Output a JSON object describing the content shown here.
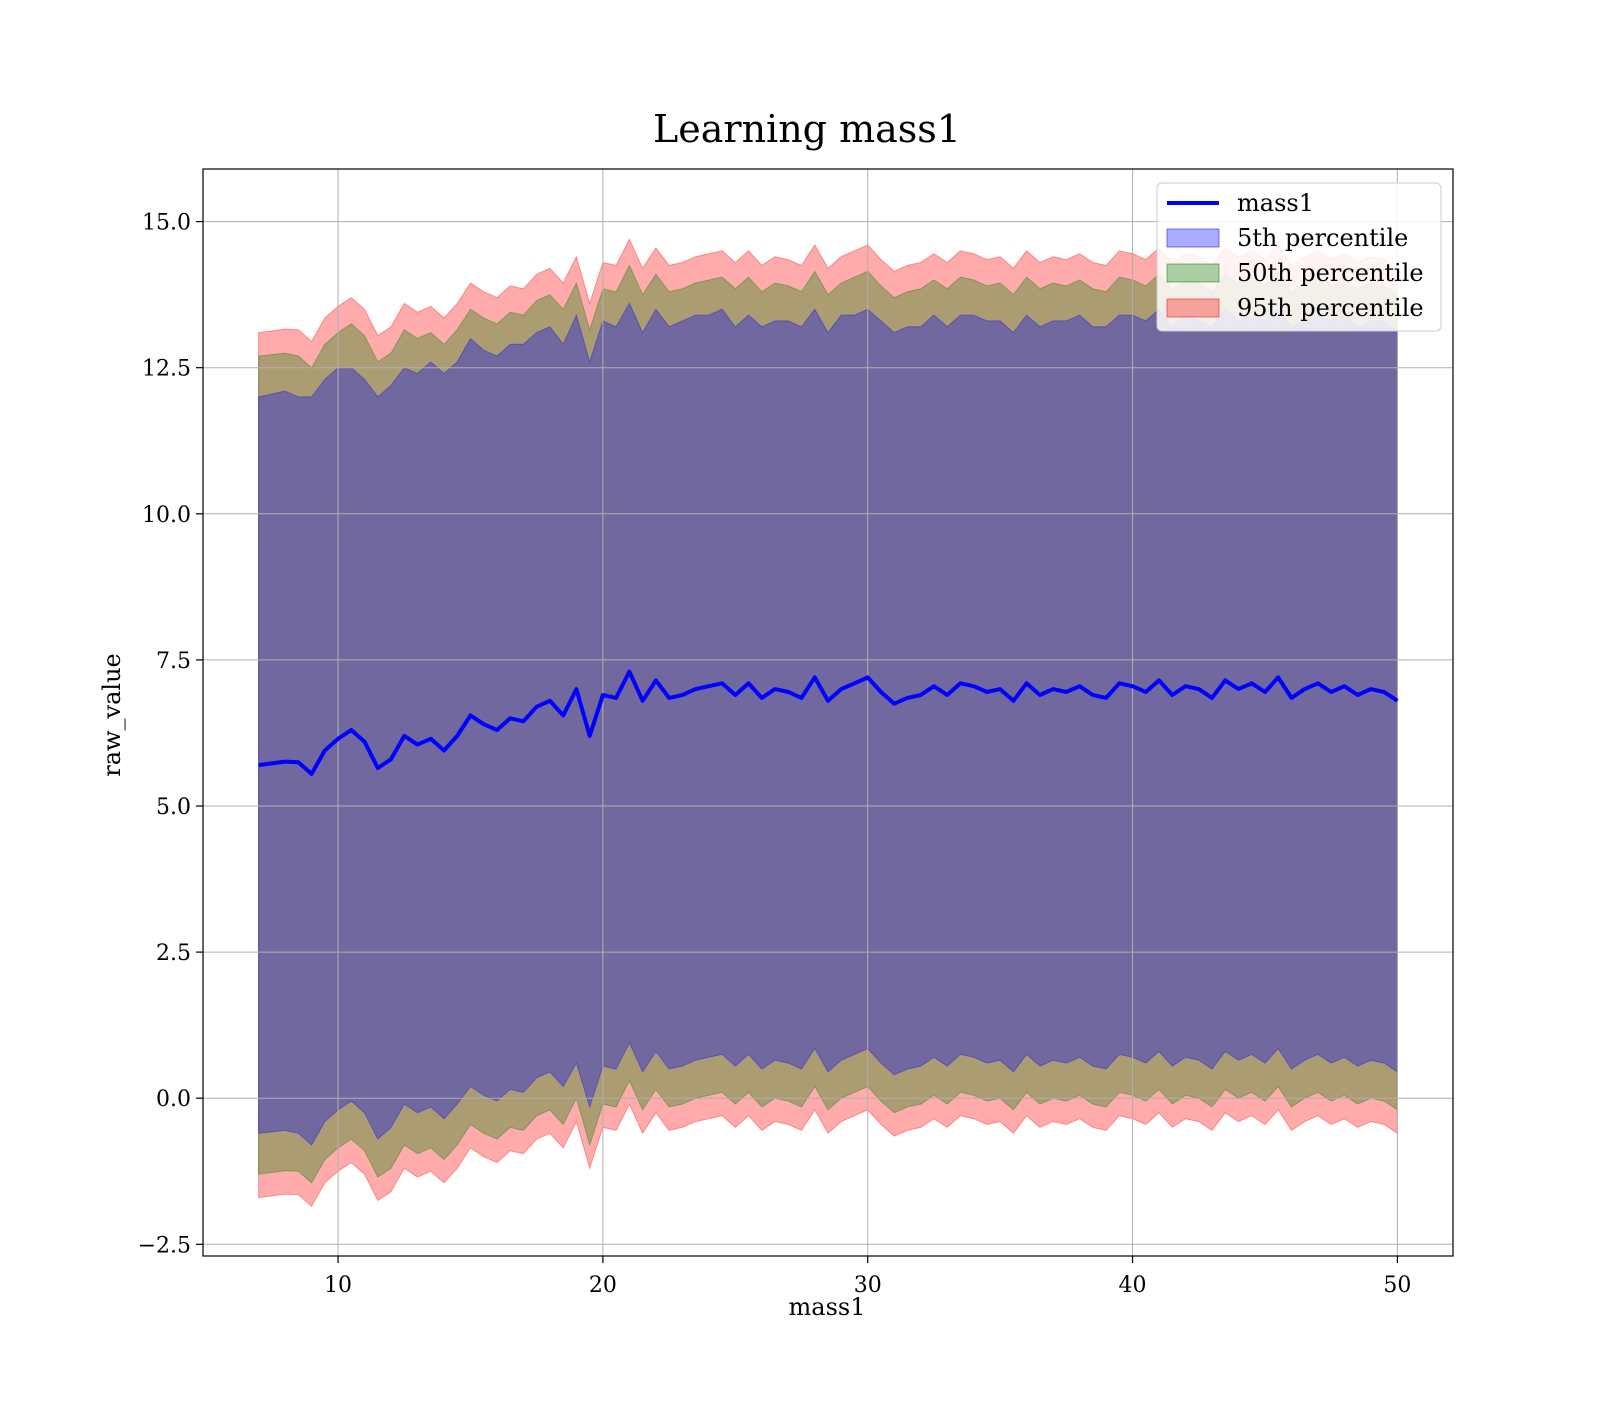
{
  "chart_data": {
    "type": "line",
    "title": "Learning mass1",
    "xlabel": "mass1",
    "ylabel": "raw_value",
    "xlim": [
      4.9,
      52.1
    ],
    "ylim": [
      -2.7,
      15.9
    ],
    "xticks": [
      10,
      20,
      30,
      40,
      50
    ],
    "xtick_labels": [
      "10",
      "20",
      "30",
      "40",
      "50"
    ],
    "yticks": [
      -2.5,
      0.0,
      2.5,
      5.0,
      7.5,
      10.0,
      12.5,
      15.0
    ],
    "ytick_labels": [
      "−2.5",
      "0.0",
      "2.5",
      "5.0",
      "7.5",
      "10.0",
      "12.5",
      "15.0"
    ],
    "grid": true,
    "legend_position": "top-right",
    "legend": [
      "mass1",
      "5th percentile",
      "50th percentile",
      "95th percentile"
    ],
    "series": [
      {
        "name": "mass1",
        "kind": "line",
        "color": "#0000ff",
        "x": [
          7,
          8,
          8.5,
          9,
          9.5,
          10,
          10.5,
          11,
          11.5,
          12,
          12.5,
          13,
          13.5,
          14,
          14.5,
          15,
          15.5,
          16,
          16.5,
          17,
          17.5,
          18,
          18.5,
          19,
          19.5,
          20,
          20.5,
          21,
          21.5,
          22,
          22.5,
          23,
          23.5,
          24,
          24.5,
          25,
          25.5,
          26,
          26.5,
          27,
          27.5,
          28,
          28.5,
          29,
          29.5,
          30,
          30.5,
          31,
          31.5,
          32,
          32.5,
          33,
          33.5,
          34,
          34.5,
          35,
          35.5,
          36,
          36.5,
          37,
          37.5,
          38,
          38.5,
          39,
          39.5,
          40,
          40.5,
          41,
          41.5,
          42,
          42.5,
          43,
          43.5,
          44,
          44.5,
          45,
          45.5,
          46,
          46.5,
          47,
          47.5,
          48,
          48.5,
          49,
          49.5,
          50
        ],
        "y": [
          5.7,
          5.76,
          5.75,
          5.55,
          5.95,
          6.15,
          6.3,
          6.1,
          5.65,
          5.8,
          6.2,
          6.05,
          6.15,
          5.95,
          6.2,
          6.55,
          6.4,
          6.3,
          6.5,
          6.45,
          6.7,
          6.8,
          6.55,
          7.0,
          6.2,
          6.9,
          6.85,
          7.3,
          6.8,
          7.15,
          6.85,
          6.9,
          7.0,
          7.05,
          7.1,
          6.9,
          7.1,
          6.85,
          7.0,
          6.95,
          6.85,
          7.2,
          6.8,
          7.0,
          7.1,
          7.2,
          6.95,
          6.75,
          6.85,
          6.9,
          7.05,
          6.9,
          7.1,
          7.05,
          6.95,
          7.0,
          6.8,
          7.1,
          6.9,
          7.0,
          6.95,
          7.05,
          6.9,
          6.85,
          7.1,
          7.05,
          6.95,
          7.15,
          6.9,
          7.05,
          7.0,
          6.85,
          7.15,
          7.0,
          7.1,
          6.95,
          7.2,
          6.85,
          7.0,
          7.1,
          6.95,
          7.05,
          6.9,
          7.0,
          6.95,
          6.8
        ]
      },
      {
        "name": "5th percentile",
        "kind": "band",
        "color": "#0000ff",
        "upper": [
          12.0,
          12.1,
          12.0,
          12.0,
          12.3,
          12.5,
          12.5,
          12.3,
          12.0,
          12.2,
          12.5,
          12.4,
          12.6,
          12.4,
          12.6,
          13.0,
          12.8,
          12.7,
          12.9,
          12.9,
          13.1,
          13.2,
          12.9,
          13.4,
          12.6,
          13.3,
          13.2,
          13.6,
          13.1,
          13.5,
          13.2,
          13.3,
          13.4,
          13.4,
          13.5,
          13.2,
          13.4,
          13.2,
          13.3,
          13.3,
          13.2,
          13.5,
          13.1,
          13.4,
          13.4,
          13.5,
          13.3,
          13.1,
          13.2,
          13.2,
          13.4,
          13.2,
          13.4,
          13.4,
          13.3,
          13.3,
          13.1,
          13.4,
          13.2,
          13.3,
          13.3,
          13.4,
          13.2,
          13.2,
          13.4,
          13.4,
          13.3,
          13.5,
          13.2,
          13.4,
          13.3,
          13.2,
          13.5,
          13.3,
          13.4,
          13.3,
          13.5,
          13.2,
          13.3,
          13.4,
          13.3,
          13.4,
          13.2,
          13.3,
          13.3,
          13.1
        ],
        "lower": [
          -0.6,
          -0.55,
          -0.6,
          -0.8,
          -0.4,
          -0.2,
          -0.05,
          -0.25,
          -0.7,
          -0.5,
          -0.1,
          -0.25,
          -0.15,
          -0.35,
          -0.1,
          0.2,
          0.05,
          -0.05,
          0.15,
          0.1,
          0.35,
          0.45,
          0.2,
          0.6,
          -0.15,
          0.55,
          0.5,
          0.95,
          0.45,
          0.8,
          0.5,
          0.55,
          0.65,
          0.7,
          0.75,
          0.55,
          0.75,
          0.5,
          0.65,
          0.6,
          0.5,
          0.85,
          0.45,
          0.65,
          0.75,
          0.85,
          0.6,
          0.4,
          0.5,
          0.55,
          0.7,
          0.55,
          0.75,
          0.7,
          0.6,
          0.65,
          0.45,
          0.75,
          0.55,
          0.65,
          0.6,
          0.7,
          0.55,
          0.5,
          0.75,
          0.7,
          0.6,
          0.8,
          0.55,
          0.7,
          0.65,
          0.5,
          0.8,
          0.65,
          0.75,
          0.6,
          0.85,
          0.5,
          0.65,
          0.75,
          0.6,
          0.7,
          0.55,
          0.65,
          0.6,
          0.45
        ]
      },
      {
        "name": "50th percentile",
        "kind": "band",
        "color": "#008000",
        "upper": [
          12.7,
          12.75,
          12.7,
          12.5,
          12.9,
          13.1,
          13.25,
          13.05,
          12.6,
          12.75,
          13.15,
          13.0,
          13.1,
          12.9,
          13.15,
          13.5,
          13.35,
          13.25,
          13.45,
          13.4,
          13.65,
          13.75,
          13.5,
          13.95,
          13.15,
          13.85,
          13.8,
          14.25,
          13.75,
          14.1,
          13.8,
          13.85,
          13.95,
          14.0,
          14.05,
          13.85,
          14.05,
          13.8,
          13.95,
          13.9,
          13.8,
          14.15,
          13.75,
          13.95,
          14.05,
          14.15,
          13.9,
          13.7,
          13.8,
          13.85,
          14.0,
          13.85,
          14.05,
          14.0,
          13.9,
          13.95,
          13.75,
          14.05,
          13.85,
          13.95,
          13.9,
          14.0,
          13.85,
          13.8,
          14.05,
          14.0,
          13.9,
          14.1,
          13.85,
          14.0,
          13.95,
          13.8,
          14.1,
          13.95,
          14.05,
          13.9,
          14.15,
          13.8,
          13.95,
          14.05,
          13.9,
          14.0,
          13.85,
          13.95,
          13.9,
          13.75
        ],
        "lower": [
          -1.3,
          -1.24,
          -1.25,
          -1.45,
          -1.05,
          -0.85,
          -0.7,
          -0.9,
          -1.35,
          -1.2,
          -0.8,
          -0.95,
          -0.85,
          -1.05,
          -0.8,
          -0.45,
          -0.6,
          -0.7,
          -0.5,
          -0.55,
          -0.3,
          -0.2,
          -0.45,
          0.0,
          -0.8,
          -0.1,
          -0.15,
          0.3,
          -0.2,
          0.15,
          -0.15,
          -0.1,
          0.0,
          0.05,
          0.1,
          -0.1,
          0.1,
          -0.15,
          0.0,
          -0.05,
          -0.15,
          0.2,
          -0.2,
          0.0,
          0.1,
          0.2,
          -0.05,
          -0.25,
          -0.15,
          -0.1,
          0.05,
          -0.1,
          0.1,
          0.05,
          -0.05,
          0.0,
          -0.2,
          0.1,
          -0.1,
          0.0,
          -0.05,
          0.05,
          -0.1,
          -0.15,
          0.1,
          0.05,
          -0.05,
          0.15,
          -0.1,
          0.05,
          0.0,
          -0.15,
          0.15,
          0.0,
          0.1,
          -0.05,
          0.2,
          -0.15,
          0.0,
          0.1,
          -0.05,
          0.05,
          -0.1,
          0.0,
          -0.05,
          -0.2
        ]
      },
      {
        "name": "95th percentile",
        "kind": "band",
        "color": "#ff0000",
        "upper": [
          13.1,
          13.16,
          13.15,
          12.95,
          13.35,
          13.55,
          13.7,
          13.5,
          13.05,
          13.2,
          13.6,
          13.45,
          13.55,
          13.35,
          13.6,
          13.95,
          13.8,
          13.7,
          13.9,
          13.85,
          14.1,
          14.2,
          13.95,
          14.4,
          13.6,
          14.3,
          14.25,
          14.7,
          14.2,
          14.55,
          14.25,
          14.3,
          14.4,
          14.45,
          14.5,
          14.3,
          14.5,
          14.25,
          14.4,
          14.35,
          14.25,
          14.6,
          14.2,
          14.4,
          14.5,
          14.6,
          14.35,
          14.15,
          14.25,
          14.3,
          14.45,
          14.3,
          14.5,
          14.45,
          14.35,
          14.4,
          14.2,
          14.5,
          14.3,
          14.4,
          14.35,
          14.45,
          14.3,
          14.25,
          14.5,
          14.45,
          14.35,
          14.55,
          14.3,
          14.45,
          14.4,
          14.25,
          14.55,
          14.4,
          14.5,
          14.35,
          14.6,
          14.25,
          14.4,
          14.5,
          14.35,
          14.45,
          14.3,
          14.4,
          14.35,
          14.2
        ],
        "lower": [
          -1.7,
          -1.64,
          -1.65,
          -1.85,
          -1.45,
          -1.25,
          -1.1,
          -1.3,
          -1.75,
          -1.6,
          -1.2,
          -1.35,
          -1.25,
          -1.45,
          -1.2,
          -0.85,
          -1.0,
          -1.1,
          -0.9,
          -0.95,
          -0.7,
          -0.6,
          -0.85,
          -0.4,
          -1.2,
          -0.5,
          -0.55,
          -0.1,
          -0.6,
          -0.25,
          -0.55,
          -0.5,
          -0.4,
          -0.35,
          -0.3,
          -0.5,
          -0.3,
          -0.55,
          -0.4,
          -0.45,
          -0.55,
          -0.2,
          -0.6,
          -0.4,
          -0.3,
          -0.2,
          -0.45,
          -0.65,
          -0.55,
          -0.5,
          -0.35,
          -0.5,
          -0.3,
          -0.35,
          -0.45,
          -0.4,
          -0.6,
          -0.3,
          -0.5,
          -0.4,
          -0.45,
          -0.35,
          -0.5,
          -0.55,
          -0.3,
          -0.35,
          -0.45,
          -0.25,
          -0.5,
          -0.35,
          -0.4,
          -0.55,
          -0.25,
          -0.4,
          -0.3,
          -0.45,
          -0.2,
          -0.55,
          -0.4,
          -0.3,
          -0.45,
          -0.35,
          -0.5,
          -0.4,
          -0.45,
          -0.6
        ]
      }
    ]
  }
}
